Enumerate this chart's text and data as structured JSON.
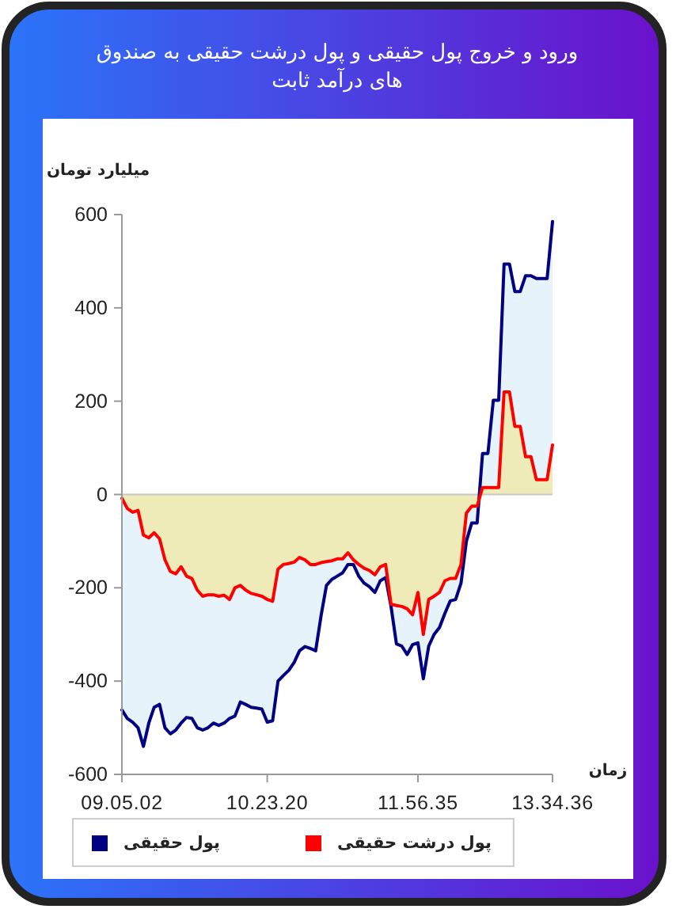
{
  "chart_data": {
    "type": "area",
    "title": "ورود و خروج پول حقیقی و پول درشت حقیقی به صندوق های درآمد ثابت",
    "xlabel": "زمان",
    "ylabel": "میلیارد تومان",
    "categories": [
      "09.05.02",
      null,
      null,
      null,
      null,
      null,
      null,
      null,
      null,
      null,
      null,
      null,
      null,
      null,
      null,
      null,
      null,
      null,
      null,
      null,
      null,
      null,
      null,
      null,
      null,
      null,
      null,
      "10.23.20",
      null,
      null,
      null,
      null,
      null,
      null,
      null,
      null,
      null,
      null,
      null,
      null,
      null,
      null,
      null,
      null,
      null,
      null,
      null,
      null,
      null,
      null,
      null,
      null,
      null,
      null,
      null,
      "11.56.35",
      null,
      null,
      null,
      null,
      null,
      null,
      null,
      null,
      null,
      null,
      null,
      null,
      null,
      null,
      null,
      null,
      null,
      null,
      null,
      null,
      null,
      null,
      null,
      null,
      "13.34.36"
    ],
    "series": [
      {
        "name": "پول حقیقی",
        "color": "#000080",
        "values": [
          -462,
          -480,
          -488,
          -500,
          -540,
          -490,
          -456,
          -450,
          -500,
          -513,
          -505,
          -490,
          -478,
          -480,
          -500,
          -505,
          -500,
          -490,
          -495,
          -490,
          -480,
          -475,
          -445,
          -450,
          -456,
          -458,
          -460,
          -488,
          -485,
          -400,
          -388,
          -377,
          -360,
          -335,
          -326,
          -330,
          -335,
          -260,
          -195,
          -182,
          -175,
          -168,
          -150,
          -150,
          -175,
          -190,
          -198,
          -210,
          -185,
          -178,
          -240,
          -320,
          -325,
          -343,
          -322,
          -318,
          -395,
          -325,
          -300,
          -285,
          -255,
          -228,
          -225,
          -190,
          -100,
          -61,
          -61,
          88,
          88,
          202,
          202,
          494,
          494,
          435,
          435,
          469,
          469,
          463,
          463,
          463,
          585
        ]
      },
      {
        "name": "پول درشت حقیقی",
        "color": "#ff0000",
        "values": [
          -8,
          -30,
          -38,
          -34,
          -87,
          -93,
          -82,
          -95,
          -140,
          -165,
          -170,
          -155,
          -175,
          -180,
          -205,
          -218,
          -215,
          -215,
          -218,
          -216,
          -225,
          -200,
          -195,
          -205,
          -212,
          -215,
          -218,
          -225,
          -229,
          -160,
          -150,
          -148,
          -145,
          -135,
          -140,
          -150,
          -150,
          -146,
          -144,
          -142,
          -138,
          -138,
          -125,
          -140,
          -150,
          -158,
          -163,
          -172,
          -155,
          -150,
          -235,
          -238,
          -240,
          -245,
          -258,
          -210,
          -300,
          -225,
          -218,
          -210,
          -185,
          -180,
          -180,
          -150,
          -40,
          -25,
          -25,
          15,
          15,
          15,
          15,
          220,
          220,
          146,
          146,
          81,
          81,
          32,
          32,
          32,
          106
        ]
      }
    ],
    "ylim": [
      -600,
      600
    ],
    "yticks": [
      -600,
      -400,
      -200,
      0,
      200,
      400,
      600
    ],
    "ref_lines": [
      {
        "axis": "y",
        "value": 0,
        "color": "#c8c8c8"
      }
    ],
    "legend": "bottom"
  }
}
